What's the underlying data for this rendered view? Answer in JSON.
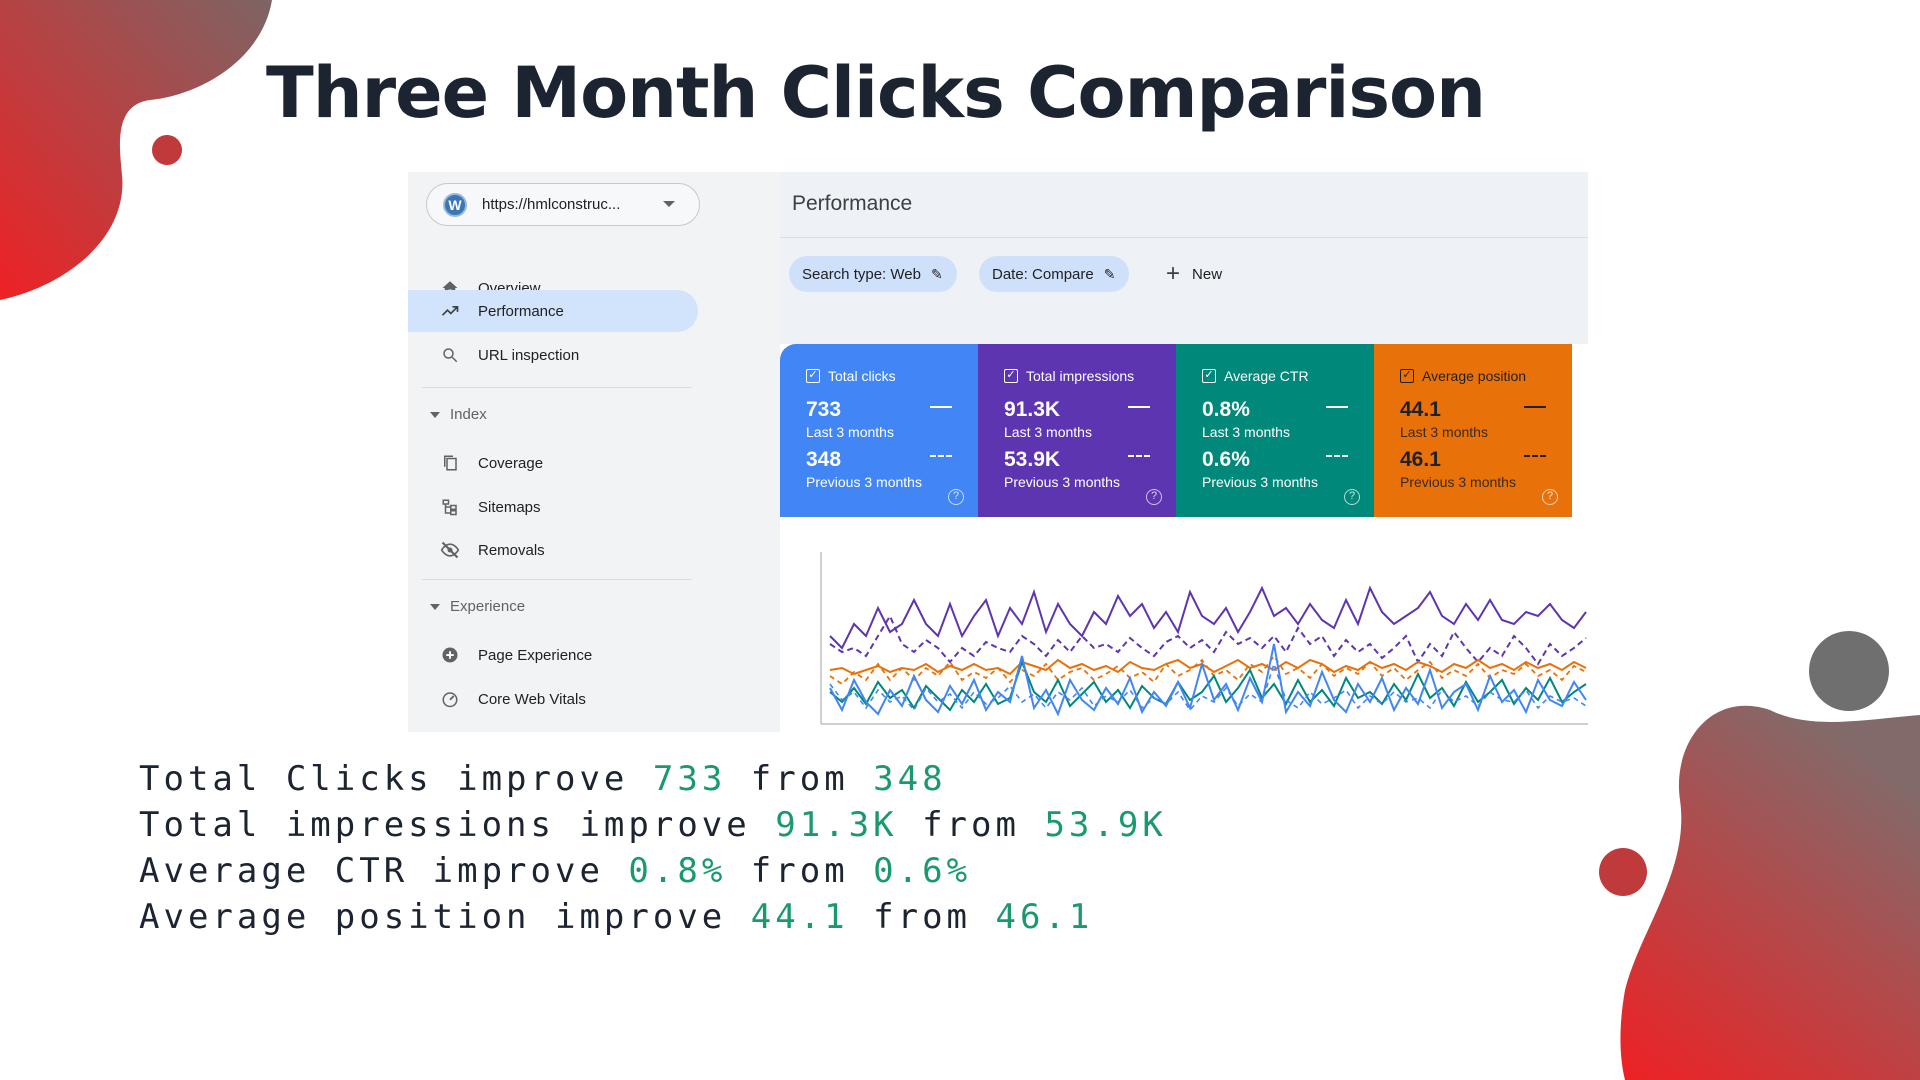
{
  "title": "Three Month Clicks Comparison",
  "property": {
    "url": "https://hmlconstruc...",
    "icon": "wordpress-icon"
  },
  "sidebar": {
    "items": [
      {
        "label": "Overview",
        "icon": "home-icon"
      },
      {
        "label": "Performance",
        "icon": "trending-up-icon"
      },
      {
        "label": "URL inspection",
        "icon": "search-icon"
      }
    ],
    "index": {
      "heading": "Index",
      "items": [
        {
          "label": "Coverage",
          "icon": "file-copy-icon"
        },
        {
          "label": "Sitemaps",
          "icon": "sitemap-icon"
        },
        {
          "label": "Removals",
          "icon": "eye-off-icon"
        }
      ]
    },
    "experience": {
      "heading": "Experience",
      "items": [
        {
          "label": "Page Experience",
          "icon": "plus-circle-icon"
        },
        {
          "label": "Core Web Vitals",
          "icon": "gauge-icon"
        }
      ]
    }
  },
  "main": {
    "title": "Performance",
    "filters": [
      {
        "label": "Search type: Web"
      },
      {
        "label": "Date: Compare"
      }
    ],
    "new_label": "New",
    "cards": [
      {
        "label": "Total clicks",
        "current": "733",
        "current_label": "Last 3 months",
        "previous": "348",
        "previous_label": "Previous 3 months",
        "color": "#4285f4"
      },
      {
        "label": "Total impressions",
        "current": "91.3K",
        "current_label": "Last 3 months",
        "previous": "53.9K",
        "previous_label": "Previous 3 months",
        "color": "#5e35b1"
      },
      {
        "label": "Average CTR",
        "current": "0.8%",
        "current_label": "Last 3 months",
        "previous": "0.6%",
        "previous_label": "Previous 3 months",
        "color": "#00897b"
      },
      {
        "label": "Average position",
        "current": "44.1",
        "current_label": "Last 3 months",
        "previous": "46.1",
        "previous_label": "Previous 3 months",
        "color": "#e8710a"
      }
    ]
  },
  "summary": [
    {
      "text": "Total Clicks improve",
      "from": "from",
      "new": "733",
      "old": "348"
    },
    {
      "text": "Total impressions improve",
      "from": "from",
      "new": "91.3K",
      "old": "53.9K"
    },
    {
      "text": "Average CTR improve",
      "from": "from",
      "new": "0.8%",
      "old": "0.6%"
    },
    {
      "text": "Average position improve",
      "from": "from",
      "new": "44.1",
      "old": "46.1"
    }
  ],
  "colors": {
    "accent_green": "#1a9a6c",
    "deco_red": "#e8262b",
    "deco_gray": "#7a6a6a"
  }
}
